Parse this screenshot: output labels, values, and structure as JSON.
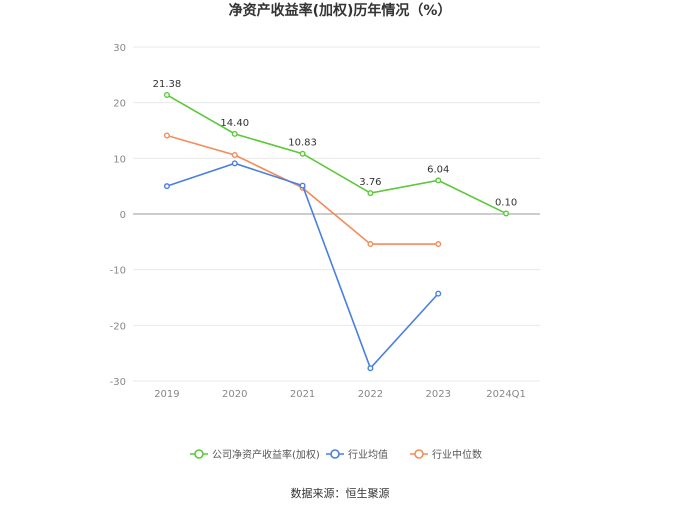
{
  "chart_data": {
    "type": "line",
    "title": "净资产收益率(加权)历年情况（%）",
    "categories": [
      "2019",
      "2020",
      "2021",
      "2022",
      "2023",
      "2024Q1"
    ],
    "ylim": [
      -30,
      30
    ],
    "yticks": [
      30,
      20,
      10,
      0,
      -10,
      -20,
      -30
    ],
    "grid": true,
    "legend_position": "bottom",
    "series": [
      {
        "name": "公司净资产收益率(加权)",
        "color": "#5cc83a",
        "values": [
          21.38,
          14.4,
          10.83,
          3.76,
          6.04,
          0.1
        ],
        "labels": [
          "21.38",
          "14.40",
          "10.83",
          "3.76",
          "6.04",
          "0.10"
        ]
      },
      {
        "name": "行业均值",
        "color": "#4a7fe0",
        "values": [
          5.0,
          9.1,
          5.1,
          -27.7,
          -14.3,
          null
        ]
      },
      {
        "name": "行业中位数",
        "color": "#f28c5a",
        "values": [
          14.1,
          10.6,
          4.7,
          -5.4,
          -5.4,
          null
        ]
      }
    ]
  },
  "source": "数据来源：恒生聚源"
}
